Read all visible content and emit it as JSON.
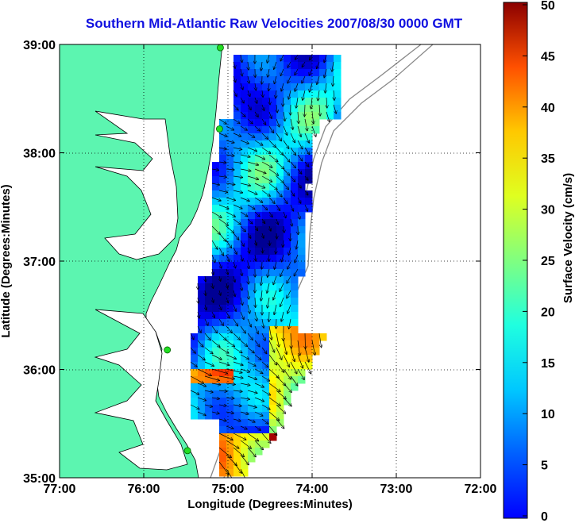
{
  "title": "Southern Mid-Atlantic Raw Velocities 2007/08/30 0000 GMT",
  "map": {
    "x_label": "Longitude (Degrees:Minutes)",
    "y_label": "Latitude (Degrees:Minutes)",
    "x_ticks": [
      "77:00",
      "76:00",
      "75:00",
      "74:00",
      "73:00",
      "72:00"
    ],
    "y_ticks": [
      "39:00",
      "38:00",
      "37:00",
      "36:00",
      "35:00"
    ],
    "lon_range": [
      -77,
      -72
    ],
    "lat_range": [
      35,
      39
    ],
    "land_color": "#5cf5b0",
    "grid": "dotted"
  },
  "colorbar": {
    "label": "Surface Velocity (cm/s)",
    "ticks": [
      "50",
      "45",
      "40",
      "35",
      "30",
      "25",
      "20",
      "15",
      "10",
      "5",
      "0"
    ],
    "range": [
      0,
      50
    ],
    "colormap": "jet"
  },
  "stations": [
    {
      "lon": -75.09,
      "lat": 38.97
    },
    {
      "lon": -75.1,
      "lat": 38.22
    },
    {
      "lon": -75.72,
      "lat": 36.18
    },
    {
      "lon": -75.48,
      "lat": 35.25
    }
  ]
}
